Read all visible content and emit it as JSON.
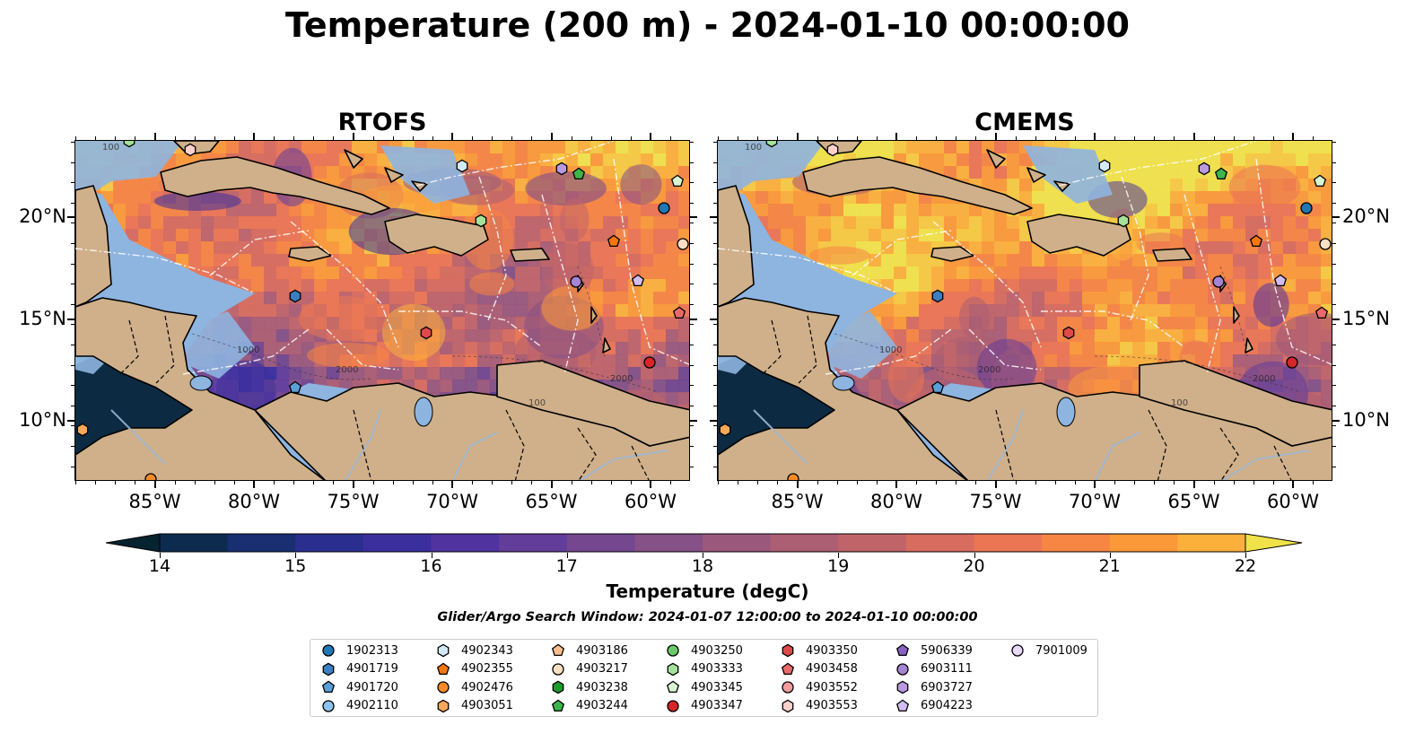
{
  "title": "Temperature (200 m) - 2024-01-10 00:00:00",
  "panels": [
    {
      "title": "RTOFS"
    },
    {
      "title": "CMEMS"
    }
  ],
  "lon_ticks": [
    "85°W",
    "80°W",
    "75°W",
    "70°W",
    "65°W",
    "60°W"
  ],
  "lat_ticks": [
    "20°N",
    "15°N",
    "10°N"
  ],
  "contour_labels": [
    "1000",
    "100",
    "2000"
  ],
  "colorbar": {
    "label": "Temperature (degC)",
    "ticks": [
      "14",
      "15",
      "16",
      "17",
      "18",
      "19",
      "20",
      "21",
      "22"
    ],
    "min": 14,
    "max": 22,
    "colors": [
      "#062330",
      "#0c2b4f",
      "#192f72",
      "#2a2f8f",
      "#3b2f9e",
      "#50339f",
      "#633d9a",
      "#74478f",
      "#855186",
      "#9a587c",
      "#ac5e72",
      "#c06469",
      "#d76c5f",
      "#eb7653",
      "#f78544",
      "#fb9939",
      "#fcb03c",
      "#f8c942",
      "#f1e24a"
    ],
    "extend": "both"
  },
  "search_window": "Glider/Argo Search Window: 2024-01-07 12:00:00 to 2024-01-10 00:00:00",
  "legend": [
    {
      "id": "1902313",
      "marker": "circle",
      "color": "#1f77b4"
    },
    {
      "id": "4901719",
      "marker": "hexagon",
      "color": "#3b7fc0"
    },
    {
      "id": "4901720",
      "marker": "pentagon",
      "color": "#5aa0d8"
    },
    {
      "id": "4902110",
      "marker": "circle",
      "color": "#8cc3ec"
    },
    {
      "id": "4902343",
      "marker": "hexagon",
      "color": "#d4e9f8"
    },
    {
      "id": "4902355",
      "marker": "pentagon",
      "color": "#f5760f"
    },
    {
      "id": "4902476",
      "marker": "circle",
      "color": "#f58a25"
    },
    {
      "id": "4903051",
      "marker": "hexagon",
      "color": "#fba75a"
    },
    {
      "id": "4903186",
      "marker": "pentagon",
      "color": "#fcc08f"
    },
    {
      "id": "4903217",
      "marker": "circle",
      "color": "#fde0c4"
    },
    {
      "id": "4903238",
      "marker": "hexagon",
      "color": "#1f9a2e"
    },
    {
      "id": "4903244",
      "marker": "pentagon",
      "color": "#3db54a"
    },
    {
      "id": "4903250",
      "marker": "circle",
      "color": "#6cc96a"
    },
    {
      "id": "4903333",
      "marker": "hexagon",
      "color": "#a3e29b"
    },
    {
      "id": "4903345",
      "marker": "pentagon",
      "color": "#d6f5d0"
    },
    {
      "id": "4903347",
      "marker": "circle",
      "color": "#d62728"
    },
    {
      "id": "4903350",
      "marker": "hexagon",
      "color": "#dd4a4a"
    },
    {
      "id": "4903458",
      "marker": "pentagon",
      "color": "#e96a6a"
    },
    {
      "id": "4903552",
      "marker": "circle",
      "color": "#f49b9b"
    },
    {
      "id": "4903553",
      "marker": "hexagon",
      "color": "#fbd0cd"
    },
    {
      "id": "5906339",
      "marker": "pentagon",
      "color": "#8a63c2"
    },
    {
      "id": "6903111",
      "marker": "circle",
      "color": "#a484d3"
    },
    {
      "id": "6903727",
      "marker": "hexagon",
      "color": "#b99ae0"
    },
    {
      "id": "6904223",
      "marker": "pentagon",
      "color": "#d2bdf0"
    },
    {
      "id": "7901009",
      "marker": "circle",
      "color": "#ead9fb"
    }
  ]
}
